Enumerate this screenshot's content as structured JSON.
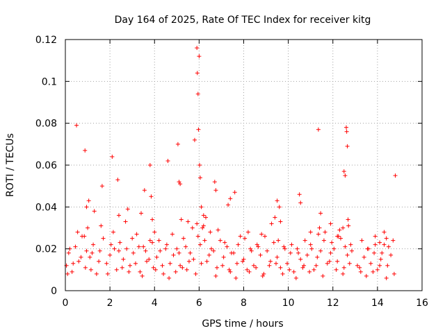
{
  "chart_data": {
    "type": "scatter",
    "title": "Day 164 of 2025, Rate Of TEC Index for receiver kitg",
    "xlabel": "GPS time / hours",
    "ylabel": "ROTI / TECUs",
    "xlim": [
      0,
      16
    ],
    "ylim": [
      0,
      0.12
    ],
    "xticks": [
      0,
      2,
      4,
      6,
      8,
      10,
      12,
      14,
      16
    ],
    "xtick_labels": [
      "0",
      "2",
      "4",
      "6",
      "8",
      "10",
      "12",
      "14",
      "16"
    ],
    "yticks": [
      0,
      0.02,
      0.04,
      0.06,
      0.08,
      0.1,
      0.12
    ],
    "ytick_labels": [
      "0",
      "0.02",
      "0.04",
      "0.06",
      "0.08",
      "0.1",
      "0.12"
    ],
    "grid": true,
    "marker": "+",
    "series": [
      {
        "name": "ROTI",
        "color": "#ff0000",
        "x": [
          0.05,
          0.15,
          0.3,
          0.45,
          0.6,
          0.75,
          0.9,
          1.0,
          1.1,
          1.25,
          1.4,
          1.55,
          1.7,
          1.85,
          2.0,
          2.15,
          2.3,
          2.45,
          2.6,
          2.75,
          2.9,
          3.05,
          3.2,
          3.35,
          3.5,
          3.65,
          3.8,
          3.95,
          4.1,
          4.25,
          4.4,
          4.55,
          4.7,
          4.85,
          5.0,
          5.15,
          5.3,
          5.45,
          5.6,
          5.75,
          5.9,
          6.05,
          6.2,
          6.35,
          6.5,
          6.65,
          6.8,
          6.95,
          7.1,
          7.25,
          7.4,
          7.55,
          7.7,
          7.85,
          8.0,
          8.15,
          8.3,
          8.45,
          8.6,
          8.75,
          8.9,
          9.05,
          9.2,
          9.35,
          9.5,
          9.65,
          9.8,
          9.95,
          10.1,
          10.25,
          10.4,
          10.55,
          10.7,
          10.85,
          11.0,
          11.15,
          11.3,
          11.45,
          11.6,
          11.75,
          11.9,
          12.05,
          12.2,
          12.35,
          12.5,
          12.65,
          12.8,
          13.1,
          13.25,
          13.4,
          13.55,
          13.7,
          13.85,
          14.0,
          14.15,
          14.3,
          14.45,
          14.6,
          14.75,
          0.1,
          0.35,
          0.7,
          0.95,
          1.15,
          1.5,
          1.9,
          2.2,
          2.55,
          2.85,
          3.15,
          3.45,
          3.75,
          4.05,
          4.35,
          4.65,
          4.95,
          5.25,
          5.55,
          5.85,
          6.1,
          6.45,
          6.75,
          7.05,
          7.35,
          7.65,
          7.95,
          8.25,
          8.55,
          8.85,
          9.15,
          9.45,
          9.75,
          10.05,
          10.35,
          10.65,
          10.95,
          11.25,
          11.55,
          11.85,
          12.15,
          12.45,
          12.75,
          13.2,
          13.5,
          13.8,
          14.1,
          14.4,
          14.7,
          0.2,
          0.55,
          0.85,
          1.2,
          1.6,
          2.05,
          2.4,
          2.7,
          3.0,
          3.3,
          3.6,
          3.9,
          4.2,
          4.5,
          4.8,
          5.1,
          5.4,
          5.7,
          5.95,
          6.25,
          6.55,
          6.85,
          7.15,
          7.45,
          7.75,
          8.05,
          8.35,
          8.65,
          8.95,
          9.25,
          9.55,
          9.85,
          10.15,
          10.45,
          10.75,
          11.05,
          11.35,
          11.65,
          11.95,
          12.25,
          12.55,
          12.85,
          13.3,
          13.6,
          13.9,
          14.2,
          14.5,
          14.8,
          0.5,
          0.88,
          0.95,
          1.05,
          1.3,
          1.65,
          2.1,
          2.35,
          2.4,
          2.8,
          3.4,
          3.55,
          3.8,
          3.85,
          3.9,
          4.0,
          4.6,
          5.05,
          5.1,
          5.15,
          5.2,
          5.5,
          5.8,
          5.9,
          5.92,
          5.95,
          5.97,
          6.0,
          6.02,
          6.05,
          6.1,
          6.15,
          6.2,
          6.3,
          6.7,
          6.75,
          7.3,
          7.4,
          7.6,
          8.2,
          8.8,
          9.4,
          9.5,
          9.6,
          9.65,
          10.5,
          10.55,
          11.0,
          11.35,
          11.4,
          11.45,
          11.9,
          12.2,
          12.3,
          12.45,
          12.5,
          12.55,
          12.6,
          12.62,
          12.65,
          12.68,
          12.7,
          13.9,
          14.1,
          14.3,
          14.4
        ],
        "y": [
          0.012,
          0.018,
          0.009,
          0.021,
          0.014,
          0.026,
          0.011,
          0.03,
          0.016,
          0.022,
          0.008,
          0.019,
          0.025,
          0.013,
          0.017,
          0.028,
          0.01,
          0.023,
          0.015,
          0.02,
          0.012,
          0.018,
          0.027,
          0.009,
          0.021,
          0.014,
          0.024,
          0.011,
          0.016,
          0.019,
          0.008,
          0.022,
          0.013,
          0.017,
          0.02,
          0.012,
          0.025,
          0.01,
          0.018,
          0.015,
          0.032,
          0.022,
          0.036,
          0.014,
          0.028,
          0.019,
          0.011,
          0.024,
          0.016,
          0.021,
          0.009,
          0.018,
          0.013,
          0.026,
          0.015,
          0.01,
          0.02,
          0.012,
          0.022,
          0.017,
          0.008,
          0.019,
          0.014,
          0.023,
          0.016,
          0.011,
          0.021,
          0.013,
          0.018,
          0.009,
          0.02,
          0.015,
          0.012,
          0.017,
          0.022,
          0.01,
          0.016,
          0.019,
          0.024,
          0.013,
          0.018,
          0.02,
          0.014,
          0.025,
          0.011,
          0.017,
          0.022,
          0.012,
          0.009,
          0.016,
          0.02,
          0.013,
          0.018,
          0.01,
          0.015,
          0.022,
          0.012,
          0.017,
          0.008,
          0.008,
          0.013,
          0.016,
          0.019,
          0.01,
          0.014,
          0.008,
          0.02,
          0.011,
          0.009,
          0.013,
          0.007,
          0.015,
          0.01,
          0.012,
          0.006,
          0.009,
          0.011,
          0.014,
          0.008,
          0.013,
          0.017,
          0.007,
          0.012,
          0.01,
          0.006,
          0.014,
          0.009,
          0.011,
          0.007,
          0.012,
          0.013,
          0.008,
          0.01,
          0.006,
          0.011,
          0.009,
          0.012,
          0.007,
          0.014,
          0.01,
          0.008,
          0.013,
          0.011,
          0.007,
          0.009,
          0.012,
          0.006,
          0.024,
          0.02,
          0.028,
          0.026,
          0.018,
          0.031,
          0.022,
          0.019,
          0.033,
          0.025,
          0.021,
          0.019,
          0.023,
          0.024,
          0.02,
          0.027,
          0.018,
          0.021,
          0.03,
          0.026,
          0.024,
          0.02,
          0.029,
          0.023,
          0.018,
          0.022,
          0.025,
          0.019,
          0.021,
          0.026,
          0.032,
          0.024,
          0.02,
          0.022,
          0.018,
          0.024,
          0.02,
          0.027,
          0.028,
          0.023,
          0.026,
          0.021,
          0.019,
          0.024,
          0.02,
          0.022,
          0.018,
          0.021,
          0.055,
          0.079,
          0.067,
          0.04,
          0.043,
          0.038,
          0.05,
          0.064,
          0.053,
          0.036,
          0.039,
          0.037,
          0.048,
          0.06,
          0.045,
          0.034,
          0.028,
          0.062,
          0.07,
          0.052,
          0.051,
          0.034,
          0.033,
          0.072,
          0.116,
          0.104,
          0.094,
          0.077,
          0.112,
          0.06,
          0.054,
          0.04,
          0.03,
          0.031,
          0.035,
          0.052,
          0.048,
          0.041,
          0.044,
          0.047,
          0.028,
          0.027,
          0.035,
          0.043,
          0.04,
          0.033,
          0.046,
          0.042,
          0.028,
          0.077,
          0.03,
          0.037,
          0.032,
          0.026,
          0.029,
          0.03,
          0.057,
          0.055,
          0.078,
          0.076,
          0.069,
          0.034,
          0.031,
          0.026,
          0.023,
          0.028,
          0.025
        ]
      }
    ]
  }
}
